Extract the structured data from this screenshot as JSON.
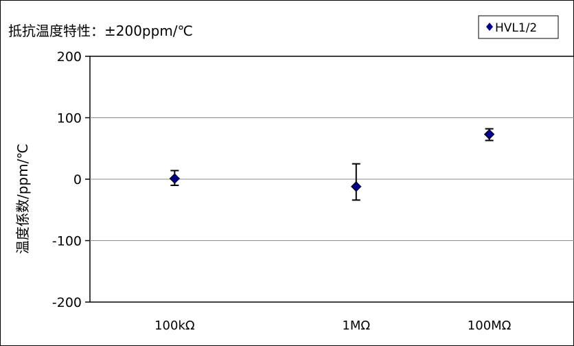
{
  "chart_data": {
    "type": "scatter",
    "title": "抵抗温度特性：±200ppm/℃",
    "xlabel": "",
    "ylabel": "温度係数/ppm/℃",
    "ylim": [
      -200,
      200
    ],
    "y_ticks": [
      {
        "value": 200,
        "label": "200"
      },
      {
        "value": 100,
        "label": "100"
      },
      {
        "value": 0,
        "label": "0"
      },
      {
        "value": -100,
        "label": "-100"
      },
      {
        "value": -200,
        "label": "-200"
      }
    ],
    "categories": [
      "100kΩ",
      "1MΩ",
      "100MΩ"
    ],
    "grid": true,
    "legend_position": "top-right",
    "series": [
      {
        "name": "HVL1/2",
        "color": "#00008B",
        "marker": "diamond",
        "points": [
          {
            "category": "100kΩ",
            "y": 1,
            "err_low": -10,
            "err_high": 14
          },
          {
            "category": "1MΩ",
            "y": -12,
            "err_low": -34,
            "err_high": 25
          },
          {
            "category": "100MΩ",
            "y": 73,
            "err_low": 63,
            "err_high": 82
          }
        ]
      }
    ],
    "point_x_positions": [
      0.175,
      0.55,
      0.825
    ]
  }
}
